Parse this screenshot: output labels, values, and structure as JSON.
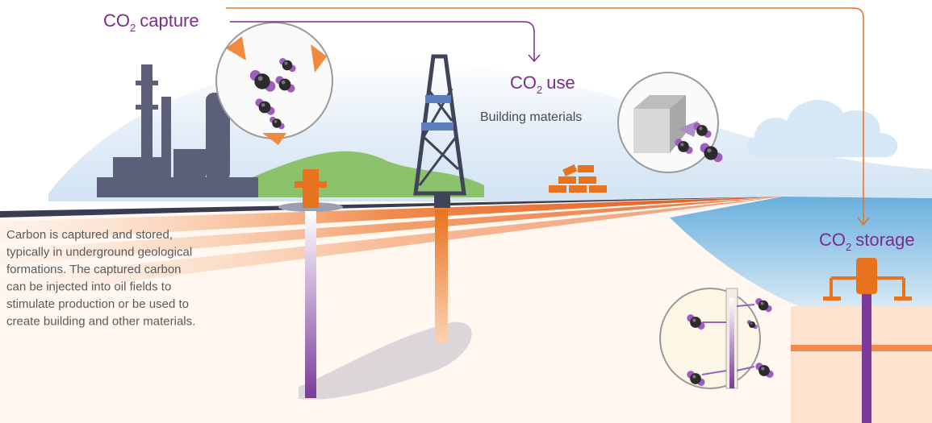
{
  "labels": {
    "capture": {
      "prefix": "CO",
      "sub": "2",
      "suffix": "capture"
    },
    "use": {
      "prefix": "CO",
      "sub": "2",
      "suffix": "use"
    },
    "use_detail": "Building materials",
    "storage": {
      "prefix": "CO",
      "sub": "2",
      "suffix": "storage"
    }
  },
  "description": {
    "lines": [
      "Carbon is captured and stored,",
      "typically in underground geological",
      "formations. The captured carbon",
      "can be injected into oil fields to",
      "stimulate production or be used to",
      "create building and other materials."
    ]
  }
}
